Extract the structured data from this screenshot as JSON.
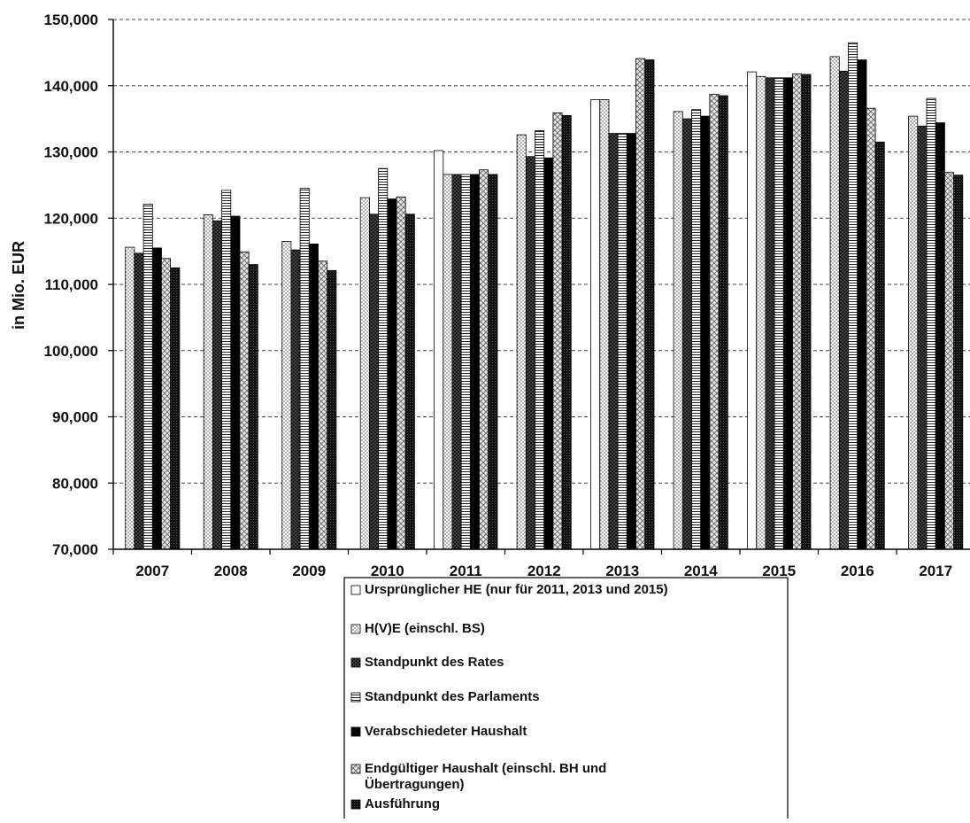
{
  "chart_data": {
    "type": "bar",
    "ylabel": "in Mio. EUR",
    "ylim": [
      70000,
      150000
    ],
    "yticks": [
      "70,000",
      "80,000",
      "90,000",
      "100,000",
      "110,000",
      "120,000",
      "130,000",
      "140,000",
      "150,000"
    ],
    "ytick_values": [
      70000,
      80000,
      90000,
      100000,
      110000,
      120000,
      130000,
      140000,
      150000
    ],
    "grid": "horizontal-dashed",
    "legend_position": "bottom",
    "categories": [
      "2007",
      "2008",
      "2009",
      "2010",
      "2011",
      "2012",
      "2013",
      "2014",
      "2015",
      "2016",
      "2017"
    ],
    "series": [
      {
        "name": "Ursprünglicher HE (nur für 2011, 2013 und 2015)",
        "pattern": "open",
        "values": [
          null,
          null,
          null,
          null,
          130200,
          null,
          137900,
          null,
          142100,
          null,
          null
        ]
      },
      {
        "name": "H(V)E (einschl. BS)",
        "pattern": "dots",
        "values": [
          115600,
          120500,
          116500,
          123100,
          126600,
          132600,
          137900,
          136100,
          141400,
          144400,
          135400
        ]
      },
      {
        "name": "Standpunkt des Rates",
        "pattern": "crosshatch",
        "values": [
          114700,
          119600,
          115200,
          120600,
          126600,
          129300,
          132800,
          135000,
          141200,
          142200,
          133900
        ]
      },
      {
        "name": "Standpunkt des Parlaments",
        "pattern": "hlines",
        "values": [
          122100,
          124200,
          124500,
          127500,
          126600,
          133200,
          132800,
          136400,
          141200,
          146500,
          138100
        ]
      },
      {
        "name": "Verabschiedeter Haushalt",
        "pattern": "solid",
        "values": [
          115500,
          120300,
          116100,
          122900,
          126600,
          129100,
          132800,
          135400,
          141200,
          143900,
          134400
        ]
      },
      {
        "name": "Endgültiger Haushalt (einschl. BH und Übertragungen)",
        "pattern": "diamond",
        "values": [
          113900,
          114900,
          113500,
          123200,
          127300,
          135900,
          144100,
          138700,
          141800,
          136600,
          126900
        ]
      },
      {
        "name": "Ausführung",
        "pattern": "dense",
        "values": [
          112500,
          113000,
          112100,
          120600,
          126600,
          135500,
          143900,
          138500,
          141700,
          131500,
          126500
        ]
      }
    ]
  }
}
